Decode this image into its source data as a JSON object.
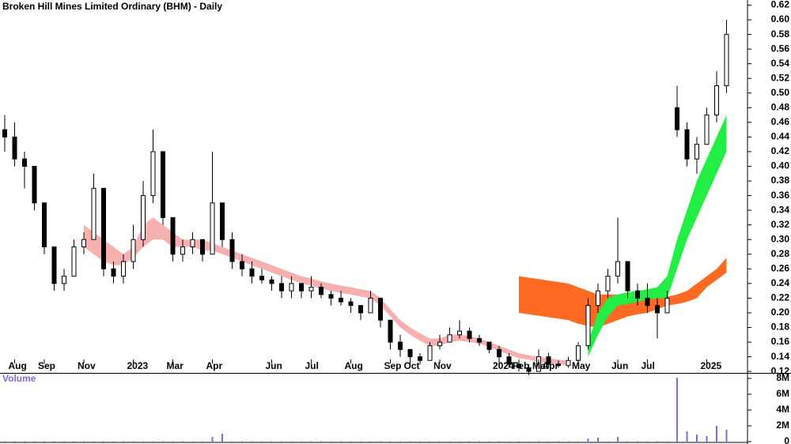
{
  "chart_data": [
    {
      "type": "candlestick",
      "title": "Broken Hill Mines Limited Ordinary (BHM) - Daily",
      "categories": [
        null,
        "Aug",
        null,
        null,
        "Sep",
        null,
        null,
        null,
        "Nov",
        null,
        null,
        null,
        null,
        "2023",
        null,
        null,
        null,
        "Mar",
        null,
        null,
        null,
        "Apr",
        null,
        null,
        null,
        null,
        null,
        "Jun",
        null,
        null,
        null,
        "Jul",
        null,
        null,
        null,
        "Aug",
        null,
        null,
        null,
        "Sep",
        null,
        "Oct",
        null,
        null,
        "Nov",
        null,
        null,
        null,
        null,
        null,
        "2024",
        null,
        "Feb",
        null,
        "Mar",
        "Apr",
        null,
        null,
        "May",
        null,
        null,
        null,
        "Jun",
        null,
        null,
        "Jul",
        null,
        null,
        null,
        null,
        null,
        "2025",
        null,
        null
      ],
      "open": [
        0.45,
        0.44,
        0.41,
        0.4,
        0.35,
        0.29,
        0.24,
        0.25,
        0.29,
        0.3,
        0.37,
        0.26,
        0.25,
        0.27,
        0.3,
        0.36,
        0.42,
        0.33,
        0.28,
        0.29,
        0.3,
        0.28,
        0.35,
        0.3,
        0.27,
        0.26,
        0.25,
        0.245,
        0.24,
        0.23,
        0.24,
        0.23,
        0.235,
        0.225,
        0.22,
        0.215,
        0.21,
        0.2,
        0.22,
        0.19,
        0.16,
        0.15,
        0.14,
        0.135,
        0.155,
        0.16,
        0.17,
        0.175,
        0.165,
        0.16,
        0.15,
        0.14,
        0.13,
        0.125,
        0.12,
        0.14,
        0.13,
        0.128,
        0.135,
        0.155,
        0.21,
        0.23,
        0.25,
        0.27,
        0.23,
        0.22,
        0.21,
        0.2,
        0.48,
        0.45,
        0.41,
        0.43,
        0.47,
        0.51
      ],
      "high": [
        0.47,
        0.46,
        0.42,
        0.4,
        0.35,
        0.29,
        0.26,
        0.3,
        0.31,
        0.39,
        0.37,
        0.27,
        0.28,
        0.32,
        0.38,
        0.45,
        0.42,
        0.33,
        0.3,
        0.31,
        0.3,
        0.42,
        0.35,
        0.31,
        0.28,
        0.27,
        0.26,
        0.25,
        0.25,
        0.25,
        0.24,
        0.25,
        0.24,
        0.23,
        0.23,
        0.22,
        0.21,
        0.23,
        0.22,
        0.19,
        0.17,
        0.15,
        0.145,
        0.16,
        0.17,
        0.18,
        0.19,
        0.18,
        0.17,
        0.16,
        0.155,
        0.145,
        0.135,
        0.13,
        0.15,
        0.145,
        0.135,
        0.14,
        0.16,
        0.22,
        0.24,
        0.26,
        0.33,
        0.27,
        0.24,
        0.24,
        0.22,
        0.23,
        0.51,
        0.46,
        0.44,
        0.48,
        0.53,
        0.6
      ],
      "low": [
        0.42,
        0.4,
        0.37,
        0.34,
        0.28,
        0.23,
        0.23,
        0.25,
        0.28,
        0.3,
        0.25,
        0.24,
        0.24,
        0.26,
        0.29,
        0.35,
        0.32,
        0.27,
        0.27,
        0.28,
        0.27,
        0.28,
        0.29,
        0.26,
        0.25,
        0.24,
        0.24,
        0.23,
        0.22,
        0.22,
        0.22,
        0.22,
        0.22,
        0.21,
        0.21,
        0.2,
        0.19,
        0.2,
        0.18,
        0.15,
        0.14,
        0.135,
        0.13,
        0.135,
        0.15,
        0.16,
        0.165,
        0.16,
        0.155,
        0.145,
        0.135,
        0.125,
        0.12,
        0.115,
        0.12,
        0.125,
        0.125,
        0.125,
        0.13,
        0.15,
        0.2,
        0.22,
        0.24,
        0.22,
        0.21,
        0.2,
        0.165,
        0.2,
        0.44,
        0.4,
        0.39,
        0.43,
        0.46,
        0.5
      ],
      "close": [
        0.44,
        0.41,
        0.4,
        0.35,
        0.29,
        0.24,
        0.25,
        0.29,
        0.3,
        0.37,
        0.26,
        0.25,
        0.27,
        0.3,
        0.36,
        0.42,
        0.33,
        0.28,
        0.29,
        0.3,
        0.28,
        0.35,
        0.3,
        0.27,
        0.26,
        0.25,
        0.245,
        0.24,
        0.23,
        0.24,
        0.23,
        0.235,
        0.225,
        0.22,
        0.215,
        0.21,
        0.2,
        0.22,
        0.19,
        0.16,
        0.15,
        0.14,
        0.135,
        0.155,
        0.16,
        0.17,
        0.175,
        0.165,
        0.16,
        0.15,
        0.14,
        0.13,
        0.125,
        0.12,
        0.14,
        0.13,
        0.128,
        0.135,
        0.155,
        0.21,
        0.23,
        0.25,
        0.27,
        0.23,
        0.22,
        0.21,
        0.2,
        0.22,
        0.45,
        0.41,
        0.43,
        0.47,
        0.51,
        0.58
      ],
      "up_color": "#ffffff",
      "down_color": "#000000",
      "bands": [
        {
          "color": "#f7b0b0",
          "upper": [
            null,
            null,
            null,
            null,
            null,
            null,
            null,
            null,
            0.32,
            0.31,
            0.3,
            0.29,
            0.28,
            0.29,
            0.32,
            0.33,
            0.32,
            0.31,
            0.3,
            0.3,
            0.3,
            0.295,
            0.29,
            0.285,
            0.28,
            0.275,
            0.27,
            0.265,
            0.26,
            0.255,
            0.25,
            0.247,
            0.243,
            0.24,
            0.237,
            0.235,
            0.232,
            0.23,
            0.22,
            0.205,
            0.19,
            0.18,
            0.172,
            0.165,
            0.165,
            0.17,
            0.17,
            0.168,
            0.165,
            0.16,
            0.155,
            0.15,
            0.145,
            0.142,
            0.14,
            0.138,
            0.136,
            0.135,
            null,
            null,
            null,
            null,
            null,
            null,
            null,
            null,
            null,
            null,
            null,
            null,
            null,
            null,
            null,
            null
          ],
          "lower": [
            null,
            null,
            null,
            null,
            null,
            null,
            null,
            null,
            0.29,
            0.28,
            0.27,
            0.265,
            0.265,
            0.275,
            0.29,
            0.3,
            0.3,
            0.29,
            0.29,
            0.29,
            0.285,
            0.285,
            0.28,
            0.275,
            0.27,
            0.265,
            0.26,
            0.255,
            0.25,
            0.245,
            0.24,
            0.237,
            0.233,
            0.23,
            0.227,
            0.225,
            0.222,
            0.22,
            0.21,
            0.195,
            0.18,
            0.17,
            0.162,
            0.155,
            0.155,
            0.16,
            0.162,
            0.16,
            0.158,
            0.153,
            0.148,
            0.143,
            0.138,
            0.136,
            0.133,
            0.131,
            0.13,
            0.128,
            null,
            null,
            null,
            null,
            null,
            null,
            null,
            null,
            null,
            null,
            null,
            null,
            null,
            null,
            null,
            null
          ]
        },
        {
          "color": "#ff6a22",
          "upper": [
            null,
            null,
            null,
            null,
            null,
            null,
            null,
            null,
            null,
            null,
            null,
            null,
            null,
            null,
            null,
            null,
            null,
            null,
            null,
            null,
            null,
            null,
            null,
            null,
            null,
            null,
            null,
            null,
            null,
            null,
            null,
            null,
            null,
            null,
            null,
            null,
            null,
            null,
            null,
            null,
            null,
            null,
            null,
            null,
            null,
            null,
            null,
            null,
            null,
            null,
            null,
            null,
            0.25,
            0.248,
            0.246,
            0.244,
            0.242,
            0.24,
            0.235,
            0.23,
            0.225,
            0.225,
            0.225,
            0.223,
            0.222,
            0.22,
            0.22,
            0.222,
            0.225,
            0.23,
            0.24,
            0.25,
            0.26,
            0.275
          ],
          "lower": [
            null,
            null,
            null,
            null,
            null,
            null,
            null,
            null,
            null,
            null,
            null,
            null,
            null,
            null,
            null,
            null,
            null,
            null,
            null,
            null,
            null,
            null,
            null,
            null,
            null,
            null,
            null,
            null,
            null,
            null,
            null,
            null,
            null,
            null,
            null,
            null,
            null,
            null,
            null,
            null,
            null,
            null,
            null,
            null,
            null,
            null,
            null,
            null,
            null,
            null,
            null,
            null,
            0.2,
            0.198,
            0.196,
            0.194,
            0.192,
            0.19,
            0.185,
            0.182,
            0.18,
            0.185,
            0.19,
            0.195,
            0.198,
            0.2,
            0.205,
            0.21,
            0.212,
            0.215,
            0.22,
            0.235,
            0.245,
            0.255
          ]
        },
        {
          "color": "#22ee44",
          "upper": [
            null,
            null,
            null,
            null,
            null,
            null,
            null,
            null,
            null,
            null,
            null,
            null,
            null,
            null,
            null,
            null,
            null,
            null,
            null,
            null,
            null,
            null,
            null,
            null,
            null,
            null,
            null,
            null,
            null,
            null,
            null,
            null,
            null,
            null,
            null,
            null,
            null,
            null,
            null,
            null,
            null,
            null,
            null,
            null,
            null,
            null,
            null,
            null,
            null,
            null,
            null,
            null,
            null,
            null,
            null,
            null,
            null,
            null,
            null,
            0.16,
            0.2,
            0.22,
            0.225,
            0.228,
            0.23,
            0.232,
            0.235,
            0.25,
            0.3,
            0.34,
            0.38,
            0.41,
            0.44,
            0.47
          ],
          "lower": [
            null,
            null,
            null,
            null,
            null,
            null,
            null,
            null,
            null,
            null,
            null,
            null,
            null,
            null,
            null,
            null,
            null,
            null,
            null,
            null,
            null,
            null,
            null,
            null,
            null,
            null,
            null,
            null,
            null,
            null,
            null,
            null,
            null,
            null,
            null,
            null,
            null,
            null,
            null,
            null,
            null,
            null,
            null,
            null,
            null,
            null,
            null,
            null,
            null,
            null,
            null,
            null,
            null,
            null,
            null,
            null,
            null,
            null,
            null,
            0.14,
            0.17,
            0.195,
            0.21,
            0.212,
            0.215,
            0.218,
            0.22,
            0.22,
            0.26,
            0.3,
            0.33,
            0.36,
            0.39,
            0.42
          ]
        }
      ],
      "ylim": [
        0.118,
        0.627
      ],
      "yticks": [
        0.12,
        0.14,
        0.16,
        0.18,
        {
          "value": 0.2,
          "label": "0.20"
        },
        0.22,
        0.24,
        0.26,
        0.28,
        {
          "value": 0.3,
          "label": "0.30"
        },
        0.32,
        0.34,
        0.36,
        0.38,
        {
          "value": 0.4,
          "label": "0.40"
        },
        0.42,
        0.44,
        0.46,
        0.48,
        {
          "value": 0.5,
          "label": "0.50"
        },
        0.52,
        0.54,
        0.56,
        0.58,
        {
          "value": 0.6,
          "label": "0.60"
        },
        0.62
      ]
    },
    {
      "type": "bar",
      "title": "Volume",
      "color": "#7070d8",
      "values": [
        30000,
        30000,
        30000,
        30000,
        30000,
        30000,
        30000,
        30000,
        30000,
        30000,
        30000,
        30000,
        30000,
        50000,
        50000,
        50000,
        50000,
        50000,
        50000,
        50000,
        50000,
        600000,
        1000000,
        50000,
        50000,
        50000,
        50000,
        50000,
        50000,
        50000,
        50000,
        50000,
        50000,
        50000,
        50000,
        50000,
        50000,
        50000,
        50000,
        50000,
        50000,
        50000,
        50000,
        50000,
        50000,
        50000,
        50000,
        50000,
        50000,
        50000,
        50000,
        50000,
        50000,
        50000,
        50000,
        50000,
        50000,
        50000,
        50000,
        400000,
        500000,
        50000,
        600000,
        50000,
        50000,
        50000,
        50000,
        50000,
        8100000,
        1300000,
        900000,
        700000,
        2000000,
        1500000
      ],
      "ylim": [
        0,
        8700000
      ],
      "yticks": [
        0,
        {
          "value": 2000000,
          "label": "2M"
        },
        {
          "value": 4000000,
          "label": "4M"
        },
        {
          "value": 6000000,
          "label": "6M"
        },
        {
          "value": 8000000,
          "label": "8M"
        }
      ]
    }
  ]
}
